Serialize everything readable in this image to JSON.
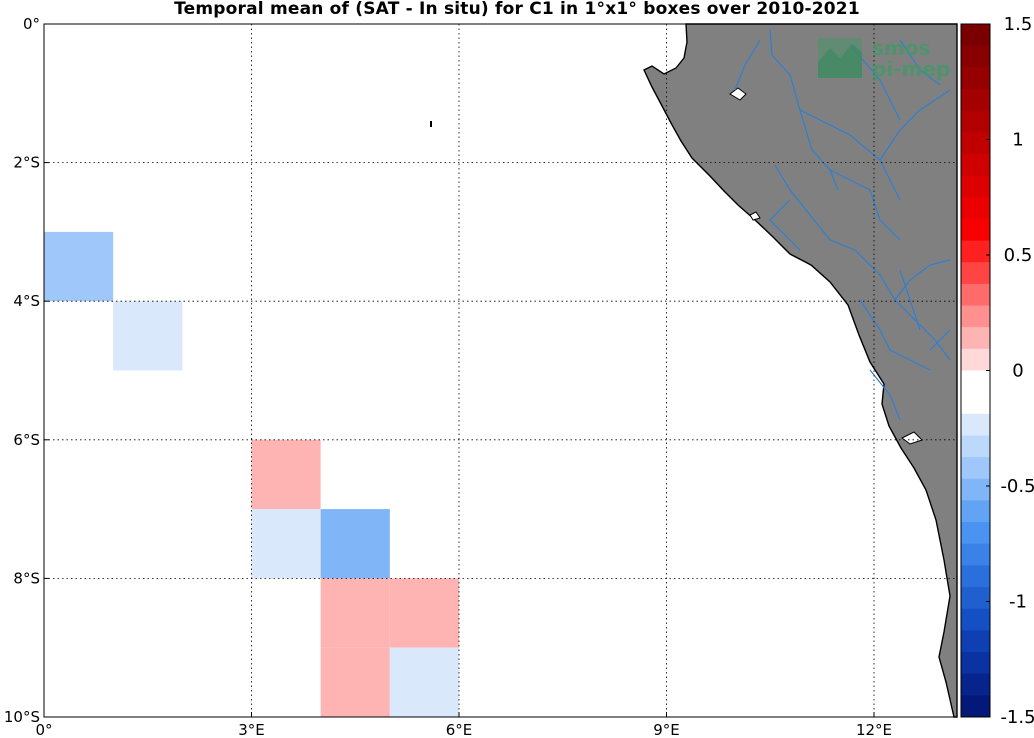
{
  "title": "Temporal mean of (SAT - In situ) for C1 in 1°x1° boxes over 2010-2021",
  "logo": {
    "line1": "smos",
    "line2": "pi-mep"
  },
  "map": {
    "lon_range": [
      0,
      13.2
    ],
    "lat_range": [
      -10,
      0
    ],
    "x_ticks": [
      {
        "lon": 0,
        "label": "0°"
      },
      {
        "lon": 3,
        "label": "3°E"
      },
      {
        "lon": 6,
        "label": "6°E"
      },
      {
        "lon": 9,
        "label": "9°E"
      },
      {
        "lon": 12,
        "label": "12°E"
      }
    ],
    "y_ticks": [
      {
        "lat": 0,
        "label": "0°"
      },
      {
        "lat": -2,
        "label": "2°S"
      },
      {
        "lat": -4,
        "label": "4°S"
      },
      {
        "lat": -6,
        "label": "6°S"
      },
      {
        "lat": -8,
        "label": "8°S"
      },
      {
        "lat": -10,
        "label": "10°S"
      }
    ],
    "grid": true,
    "land_color": "#808080",
    "river_color": "#2f7fd0"
  },
  "chart_data": {
    "type": "heatmap",
    "title": "Temporal mean of (SAT - In situ) for C1 in 1°x1° boxes over 2010-2021",
    "cell_size_deg": 1,
    "cells": [
      {
        "lon": 0,
        "lat": -3,
        "value": -0.45
      },
      {
        "lon": 0,
        "lat": -4,
        "value": -0.1
      },
      {
        "lon": 1,
        "lat": -4,
        "value": -0.2
      },
      {
        "lon": 0,
        "lat": -6,
        "value": -0.1
      },
      {
        "lon": 3,
        "lat": -6,
        "value": 0.1
      },
      {
        "lon": 1,
        "lat": -7,
        "value": -0.1
      },
      {
        "lon": 3,
        "lat": -7,
        "value": -0.2
      },
      {
        "lon": 4,
        "lat": -7,
        "value": -0.55
      },
      {
        "lon": 2,
        "lat": -8,
        "value": -0.1
      },
      {
        "lon": 4,
        "lat": -8,
        "value": 0.1
      },
      {
        "lon": 5,
        "lat": -8,
        "value": 0.1
      },
      {
        "lon": 4,
        "lat": -9,
        "value": 0.1
      },
      {
        "lon": 5,
        "lat": -9,
        "value": -0.2
      }
    ],
    "colorbar": {
      "range": [
        -1.5,
        1.5
      ],
      "ticks": [
        {
          "value": 1.5,
          "label": "1.5"
        },
        {
          "value": 1,
          "label": "1"
        },
        {
          "value": 0.5,
          "label": "0.5"
        },
        {
          "value": 0,
          "label": "0"
        },
        {
          "value": -0.5,
          "label": "-0.5"
        },
        {
          "value": -1,
          "label": "-1"
        },
        {
          "value": -1.5,
          "label": "-1.5"
        }
      ],
      "colors_top_to_bottom": [
        "#7a0000",
        "#880000",
        "#960000",
        "#a40000",
        "#b20000",
        "#c00000",
        "#ce0000",
        "#dc0000",
        "#ea0000",
        "#f80000",
        "#ff2020",
        "#ff4444",
        "#ff6b6b",
        "#ff9090",
        "#ffb4b4",
        "#ffd9d9",
        "#ffffff",
        "#ffffff",
        "#d9e8fb",
        "#bcd8fb",
        "#9fc7f9",
        "#80b5f7",
        "#62a3f4",
        "#4a93f0",
        "#3a82e8",
        "#2a6fdc",
        "#1f5fd0",
        "#154fc4",
        "#0e40b4",
        "#0a32a0",
        "#06248c",
        "#031878"
      ]
    }
  }
}
